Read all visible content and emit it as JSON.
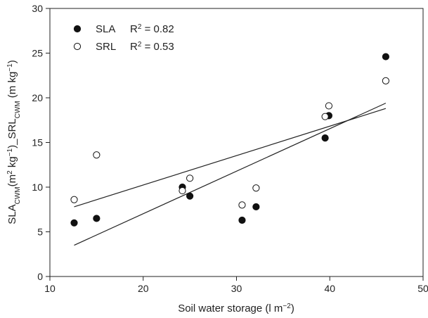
{
  "chart_data": {
    "type": "scatter",
    "xlabel_base": "Soil water storage (l m",
    "xlabel_exp": "−2",
    "xlabel_tail": ")",
    "ylabel_parts": [
      {
        "t": "SLA",
        "s": "base"
      },
      {
        "t": "CWM",
        "s": "sub"
      },
      {
        "t": "(m",
        "s": "base"
      },
      {
        "t": "2",
        "s": "sup"
      },
      {
        "t": " kg",
        "s": "base"
      },
      {
        "t": "−1",
        "s": "sup"
      },
      {
        "t": ")_SRL",
        "s": "base"
      },
      {
        "t": "CWM",
        "s": "sub"
      },
      {
        "t": " (m kg",
        "s": "base"
      },
      {
        "t": "−1",
        "s": "sup"
      },
      {
        "t": ")",
        "s": "base"
      }
    ],
    "xlim": [
      10,
      50
    ],
    "ylim": [
      0,
      30
    ],
    "xticks": [
      10,
      20,
      30,
      40,
      50
    ],
    "yticks": [
      0,
      5,
      10,
      15,
      20,
      25,
      30
    ],
    "legend_position": "top-left",
    "series": [
      {
        "name": "SLA",
        "marker": "filled-circle",
        "r2_label": "R",
        "r2_exp": "2",
        "r2_value": " = 0.82",
        "points": [
          [
            12.6,
            6.0
          ],
          [
            15.0,
            6.5
          ],
          [
            24.2,
            10.0
          ],
          [
            25.0,
            9.0
          ],
          [
            30.6,
            6.3
          ],
          [
            32.1,
            7.8
          ],
          [
            39.5,
            15.5
          ],
          [
            39.9,
            18.0
          ],
          [
            46.0,
            24.6
          ]
        ],
        "fit": [
          [
            12.6,
            3.5
          ],
          [
            46.0,
            19.4
          ]
        ]
      },
      {
        "name": "SRL",
        "marker": "open-circle",
        "r2_label": "R",
        "r2_exp": "2",
        "r2_value": " = 0.53",
        "points": [
          [
            12.6,
            8.6
          ],
          [
            15.0,
            13.6
          ],
          [
            24.2,
            9.6
          ],
          [
            25.0,
            11.0
          ],
          [
            30.6,
            8.0
          ],
          [
            32.1,
            9.9
          ],
          [
            39.5,
            17.9
          ],
          [
            39.9,
            19.1
          ],
          [
            46.0,
            21.9
          ]
        ],
        "fit": [
          [
            12.6,
            7.8
          ],
          [
            46.0,
            18.8
          ]
        ]
      }
    ]
  }
}
